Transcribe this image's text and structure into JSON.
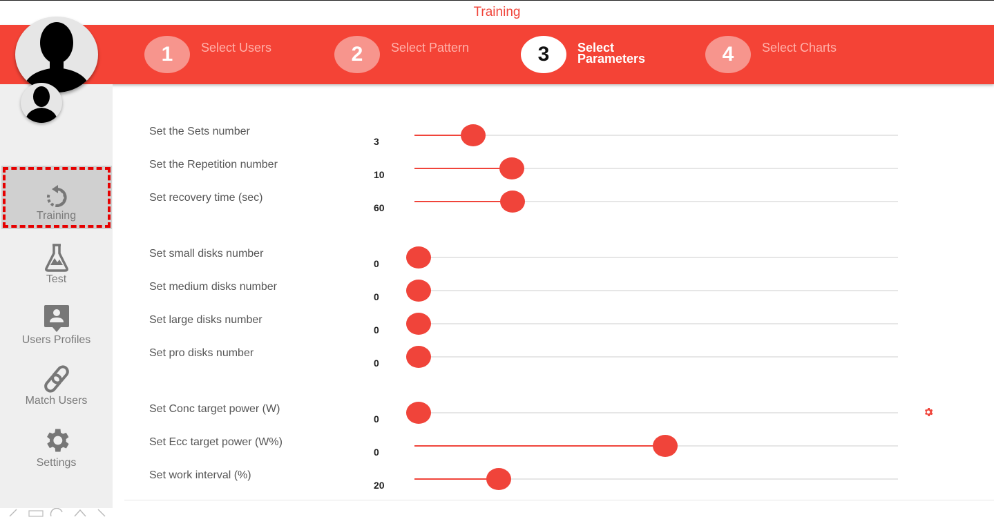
{
  "app": {
    "title": "Training"
  },
  "steps": [
    {
      "number": "1",
      "label": "Select Users",
      "active": false
    },
    {
      "number": "2",
      "label": "Select Pattern",
      "active": false
    },
    {
      "number": "3",
      "label": "Select Parameters",
      "active": true
    },
    {
      "number": "4",
      "label": "Select Charts",
      "active": false
    }
  ],
  "sidebar": {
    "items": [
      {
        "label": "Training",
        "icon": "refresh-icon",
        "selected": true
      },
      {
        "label": "Test",
        "icon": "flask-icon"
      },
      {
        "label": "Users Profiles",
        "icon": "profile-icon"
      },
      {
        "label": "Match Users",
        "icon": "link-icon"
      },
      {
        "label": "Settings",
        "icon": "gear-icon"
      }
    ]
  },
  "parameters": [
    {
      "label": "Set the Sets number",
      "value": "3",
      "fraction": 0.113
    },
    {
      "label": "Set the Repetition number",
      "value": "10",
      "fraction": 0.193
    },
    {
      "label": "Set recovery time (sec)",
      "value": "60",
      "fraction": 0.194
    },
    {
      "label": "Set small disks number",
      "value": "0",
      "fraction": 0.0
    },
    {
      "label": "Set medium disks number",
      "value": "0",
      "fraction": 0.0
    },
    {
      "label": "Set large disks number",
      "value": "0",
      "fraction": 0.0
    },
    {
      "label": "Set pro disks number",
      "value": "0",
      "fraction": 0.0
    },
    {
      "label": "Set Conc target power (W)",
      "value": "0",
      "fraction": 0.0
    },
    {
      "label": "Set Ecc target power (W%)",
      "value": "0",
      "fraction": 0.51
    },
    {
      "label": "Set work interval (%)",
      "value": "20",
      "fraction": 0.166
    }
  ],
  "colors": {
    "accent": "#f44336",
    "thumb": "#f0443a",
    "sidebar": "#efefef",
    "highlight": "#e60000"
  }
}
